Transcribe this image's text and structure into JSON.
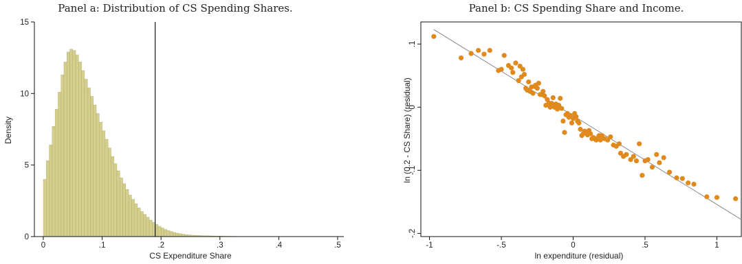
{
  "chart_data": [
    {
      "type": "bar",
      "title": "Panel a: Distribution of CS Spending Shares.",
      "xlabel": "CS Expenditure Share",
      "ylabel": "Density",
      "xlim": [
        0,
        0.5
      ],
      "ylim": [
        0,
        15
      ],
      "xticks": [
        "0",
        ".1",
        ".2",
        ".3",
        ".4",
        ".5"
      ],
      "xtick_values": [
        0,
        0.1,
        0.2,
        0.3,
        0.4,
        0.5
      ],
      "yticks": [
        "0",
        "5",
        "10",
        "15"
      ],
      "ytick_values": [
        0,
        5,
        10,
        15
      ],
      "bin_width": 0.005,
      "bin_start": 0,
      "bar_color": "#d4cf8f",
      "bar_edge": "#a9a45f",
      "values": [
        4.0,
        5.3,
        6.4,
        7.7,
        8.9,
        10.1,
        11.3,
        12.2,
        12.9,
        13.1,
        13.0,
        12.7,
        12.2,
        11.6,
        11.0,
        10.4,
        9.8,
        9.2,
        8.6,
        8.0,
        7.4,
        6.8,
        6.2,
        5.6,
        5.1,
        4.6,
        4.1,
        3.7,
        3.3,
        2.9,
        2.6,
        2.3,
        2.0,
        1.75,
        1.55,
        1.35,
        1.15,
        1.0,
        0.85,
        0.72,
        0.6,
        0.5,
        0.42,
        0.35,
        0.29,
        0.24,
        0.2,
        0.17,
        0.14,
        0.12,
        0.1,
        0.09,
        0.08,
        0.07,
        0.06,
        0.055,
        0.05,
        0.045,
        0.04,
        0.035,
        0.03,
        0.028,
        0.025,
        0.023,
        0.02,
        0.018,
        0.016,
        0.015,
        0.014,
        0.013,
        0.012,
        0.011,
        0.01,
        0.01,
        0.009,
        0.009,
        0.008,
        0.008,
        0.007,
        0.007,
        0.006,
        0.006,
        0.006,
        0.005,
        0.005,
        0.005,
        0.005,
        0.004,
        0.004,
        0.004,
        0.004,
        0.004,
        0.003,
        0.003,
        0.003,
        0.003,
        0.003,
        0.003,
        0.003,
        0.003
      ],
      "reference_line_x": 0.19
    },
    {
      "type": "scatter",
      "title": "Panel b:   CS Spending Share and Income.",
      "xlabel": "ln expenditure (residual)",
      "ylabel": "ln (0.2 - CS Share) (residual)",
      "xlim": [
        -1.06,
        1.17
      ],
      "ylim": [
        -0.205,
        0.135
      ],
      "xticks": [
        "-1",
        "-.5",
        "0",
        ".5",
        "1"
      ],
      "xtick_values": [
        -1,
        -0.5,
        0,
        0.5,
        1
      ],
      "yticks": [
        "-.2",
        "-.1",
        "0",
        ".1"
      ],
      "ytick_values": [
        -0.2,
        -0.1,
        0,
        0.1
      ],
      "point_color": "#e08a1e",
      "line_color": "#8a8a8a",
      "fit_line": {
        "x": [
          -0.97,
          1.17
        ],
        "y": [
          0.123,
          -0.178
        ]
      },
      "points": [
        [
          -0.97,
          0.112
        ],
        [
          -0.78,
          0.078
        ],
        [
          -0.71,
          0.085
        ],
        [
          -0.66,
          0.09
        ],
        [
          -0.62,
          0.084
        ],
        [
          -0.58,
          0.09
        ],
        [
          -0.52,
          0.058
        ],
        [
          -0.5,
          0.06
        ],
        [
          -0.48,
          0.082
        ],
        [
          -0.45,
          0.066
        ],
        [
          -0.43,
          0.062
        ],
        [
          -0.42,
          0.055
        ],
        [
          -0.4,
          0.07
        ],
        [
          -0.38,
          0.042
        ],
        [
          -0.37,
          0.065
        ],
        [
          -0.36,
          0.048
        ],
        [
          -0.35,
          0.06
        ],
        [
          -0.34,
          0.052
        ],
        [
          -0.33,
          0.03
        ],
        [
          -0.32,
          0.027
        ],
        [
          -0.31,
          0.04
        ],
        [
          -0.3,
          0.025
        ],
        [
          -0.29,
          0.032
        ],
        [
          -0.28,
          0.022
        ],
        [
          -0.27,
          0.033
        ],
        [
          -0.26,
          0.035
        ],
        [
          -0.25,
          0.03
        ],
        [
          -0.24,
          0.038
        ],
        [
          -0.23,
          0.02
        ],
        [
          -0.22,
          0.02
        ],
        [
          -0.21,
          0.025
        ],
        [
          -0.2,
          0.018
        ],
        [
          -0.19,
          0.003
        ],
        [
          -0.18,
          0.012
        ],
        [
          -0.17,
          0.006
        ],
        [
          -0.16,
          0.0
        ],
        [
          -0.15,
          0.006
        ],
        [
          -0.14,
          0.015
        ],
        [
          -0.13,
          0.0
        ],
        [
          -0.12,
          0.005
        ],
        [
          -0.11,
          -0.003
        ],
        [
          -0.1,
          0.003
        ],
        [
          -0.09,
          0.014
        ],
        [
          -0.08,
          -0.002
        ],
        [
          -0.07,
          -0.022
        ],
        [
          -0.06,
          -0.04
        ],
        [
          -0.05,
          -0.012
        ],
        [
          -0.04,
          -0.01
        ],
        [
          -0.03,
          -0.016
        ],
        [
          -0.02,
          -0.013
        ],
        [
          -0.01,
          -0.025
        ],
        [
          0.0,
          -0.018
        ],
        [
          0.01,
          -0.01
        ],
        [
          0.02,
          -0.015
        ],
        [
          0.03,
          -0.022
        ],
        [
          0.04,
          -0.025
        ],
        [
          0.05,
          -0.035
        ],
        [
          0.06,
          -0.045
        ],
        [
          0.07,
          -0.042
        ],
        [
          0.08,
          -0.038
        ],
        [
          0.09,
          -0.04
        ],
        [
          0.1,
          -0.044
        ],
        [
          0.11,
          -0.037
        ],
        [
          0.12,
          -0.042
        ],
        [
          0.13,
          -0.05
        ],
        [
          0.14,
          -0.048
        ],
        [
          0.15,
          -0.05
        ],
        [
          0.16,
          -0.052
        ],
        [
          0.17,
          -0.049
        ],
        [
          0.18,
          -0.045
        ],
        [
          0.19,
          -0.052
        ],
        [
          0.2,
          -0.045
        ],
        [
          0.22,
          -0.05
        ],
        [
          0.24,
          -0.052
        ],
        [
          0.26,
          -0.047
        ],
        [
          0.28,
          -0.06
        ],
        [
          0.3,
          -0.062
        ],
        [
          0.32,
          -0.058
        ],
        [
          0.33,
          -0.073
        ],
        [
          0.35,
          -0.078
        ],
        [
          0.37,
          -0.075
        ],
        [
          0.4,
          -0.083
        ],
        [
          0.42,
          -0.078
        ],
        [
          0.44,
          -0.085
        ],
        [
          0.46,
          -0.058
        ],
        [
          0.48,
          -0.108
        ],
        [
          0.5,
          -0.085
        ],
        [
          0.52,
          -0.083
        ],
        [
          0.55,
          -0.095
        ],
        [
          0.58,
          -0.075
        ],
        [
          0.6,
          -0.088
        ],
        [
          0.63,
          -0.08
        ],
        [
          0.67,
          -0.103
        ],
        [
          0.72,
          -0.112
        ],
        [
          0.76,
          -0.113
        ],
        [
          0.8,
          -0.12
        ],
        [
          0.84,
          -0.122
        ],
        [
          0.93,
          -0.142
        ],
        [
          1.0,
          -0.143
        ],
        [
          1.13,
          -0.145
        ]
      ]
    }
  ]
}
